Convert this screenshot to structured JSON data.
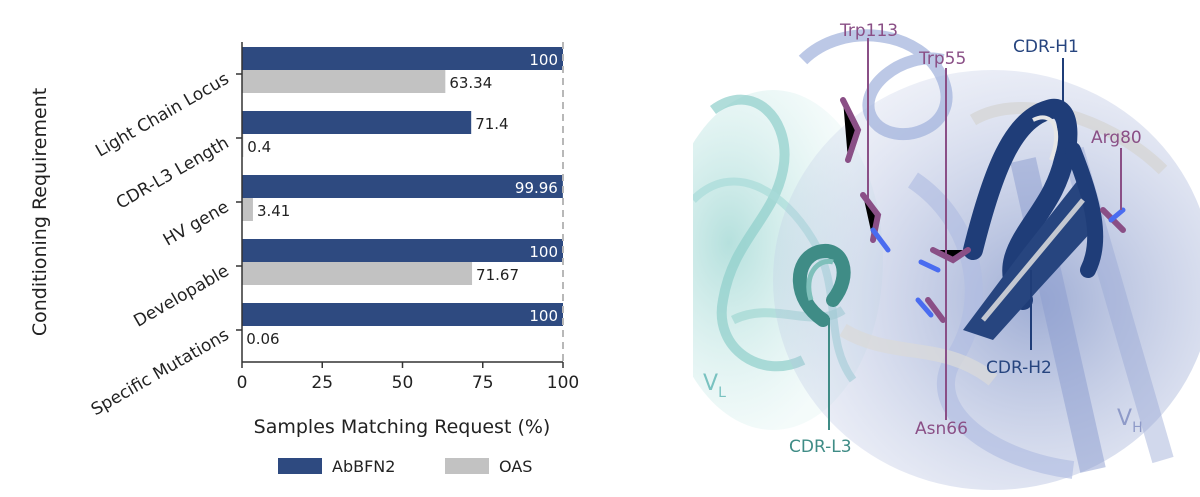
{
  "chart_data": {
    "type": "bar",
    "orientation": "horizontal",
    "categories": [
      "Light Chain Locus",
      "CDR-L3 Length",
      "HV gene",
      "Developable",
      "Specific Mutations"
    ],
    "series": [
      {
        "name": "AbBFN2",
        "values": [
          100,
          71.4,
          99.96,
          100,
          100
        ],
        "color": "#2e4a80"
      },
      {
        "name": "OAS",
        "values": [
          63.34,
          0.4,
          3.41,
          71.67,
          0.06
        ],
        "color": "#c2c2c2"
      }
    ],
    "value_labels": {
      "AbBFN2": [
        "100",
        "71.4",
        "99.96",
        "100",
        "100"
      ],
      "OAS": [
        "63.34",
        "0.4",
        "3.41",
        "71.67",
        "0.06"
      ]
    },
    "xlabel": "Samples Matching Request (%)",
    "ylabel": "Conditioning Requirement",
    "xlim": [
      0,
      100
    ],
    "xticks": [
      0,
      25,
      50,
      75,
      100
    ],
    "reference_line": 100,
    "grid": false,
    "legend_position": "bottom"
  },
  "structure_panel": {
    "labels": {
      "trp113": "Trp113",
      "trp55": "Trp55",
      "cdr_h1": "CDR-H1",
      "arg80": "Arg80",
      "cdr_h2": "CDR-H2",
      "asn66": "Asn66",
      "cdr_l3": "CDR-L3",
      "vl_main": "V",
      "vl_sub": "L",
      "vh_main": "V",
      "vh_sub": "H"
    },
    "colors": {
      "residue": "#8a4f86",
      "heavy": "#27457f",
      "light": "#3f8c86",
      "vh_text": "#8e9ac8",
      "vl_text": "#79c2c0"
    }
  }
}
